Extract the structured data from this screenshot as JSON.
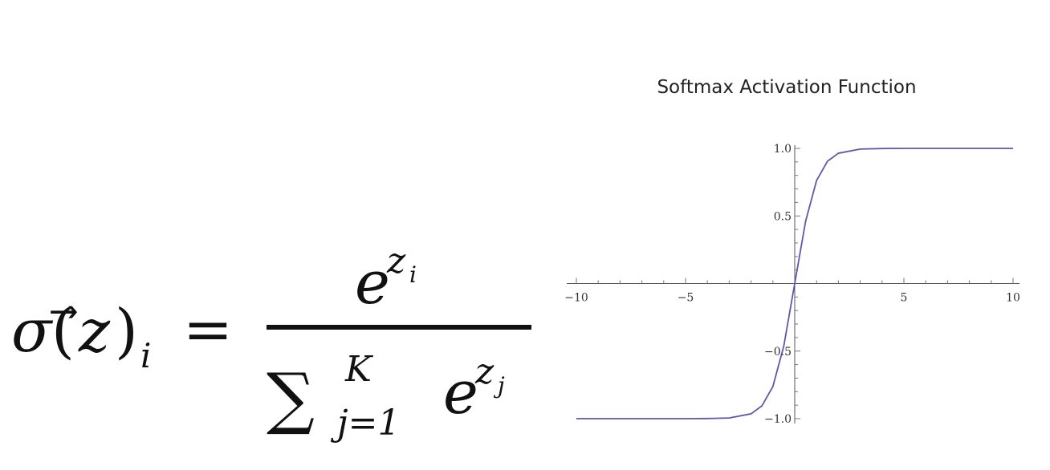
{
  "formula": {
    "sigma": "σ",
    "lparen": "(",
    "z": "z",
    "vec_arrow": "⃗",
    "rparen": ")",
    "sub_i": "i",
    "equals": "=",
    "num_base": "e",
    "num_exp": "z",
    "num_exp_sub": "i",
    "sum": "∑",
    "sum_upper": "K",
    "sum_lower": "j=1",
    "den_base": "e",
    "den_exp": "z",
    "den_exp_sub": "j"
  },
  "chart_data": {
    "type": "line",
    "title": "Softmax Activation Function",
    "xlabel": "",
    "ylabel": "",
    "xlim": [
      -10,
      10
    ],
    "ylim": [
      -1,
      1
    ],
    "x_ticks": [
      -10,
      -5,
      5,
      10
    ],
    "x_tick_labels": [
      "−10",
      "−5",
      "5",
      "10"
    ],
    "y_ticks": [
      1.0,
      0.5,
      -0.5,
      -1.0
    ],
    "y_tick_labels": [
      "1.0",
      "0.5",
      "−0.5",
      "−1.0"
    ],
    "grid": false,
    "legend": "none",
    "line_color": "#5a5aa8",
    "series": [
      {
        "x": [
          -10,
          -8,
          -6,
          -5,
          -4,
          -3,
          -2,
          -1.5,
          -1,
          -0.5,
          0,
          0.5,
          1,
          1.5,
          2,
          3,
          4,
          5,
          6,
          8,
          10
        ],
        "values": [
          -1.0,
          -1.0,
          -1.0,
          -1.0,
          -0.999,
          -0.995,
          -0.964,
          -0.905,
          -0.762,
          -0.462,
          0.0,
          0.462,
          0.762,
          0.905,
          0.964,
          0.995,
          0.999,
          1.0,
          1.0,
          1.0,
          1.0
        ]
      }
    ]
  }
}
